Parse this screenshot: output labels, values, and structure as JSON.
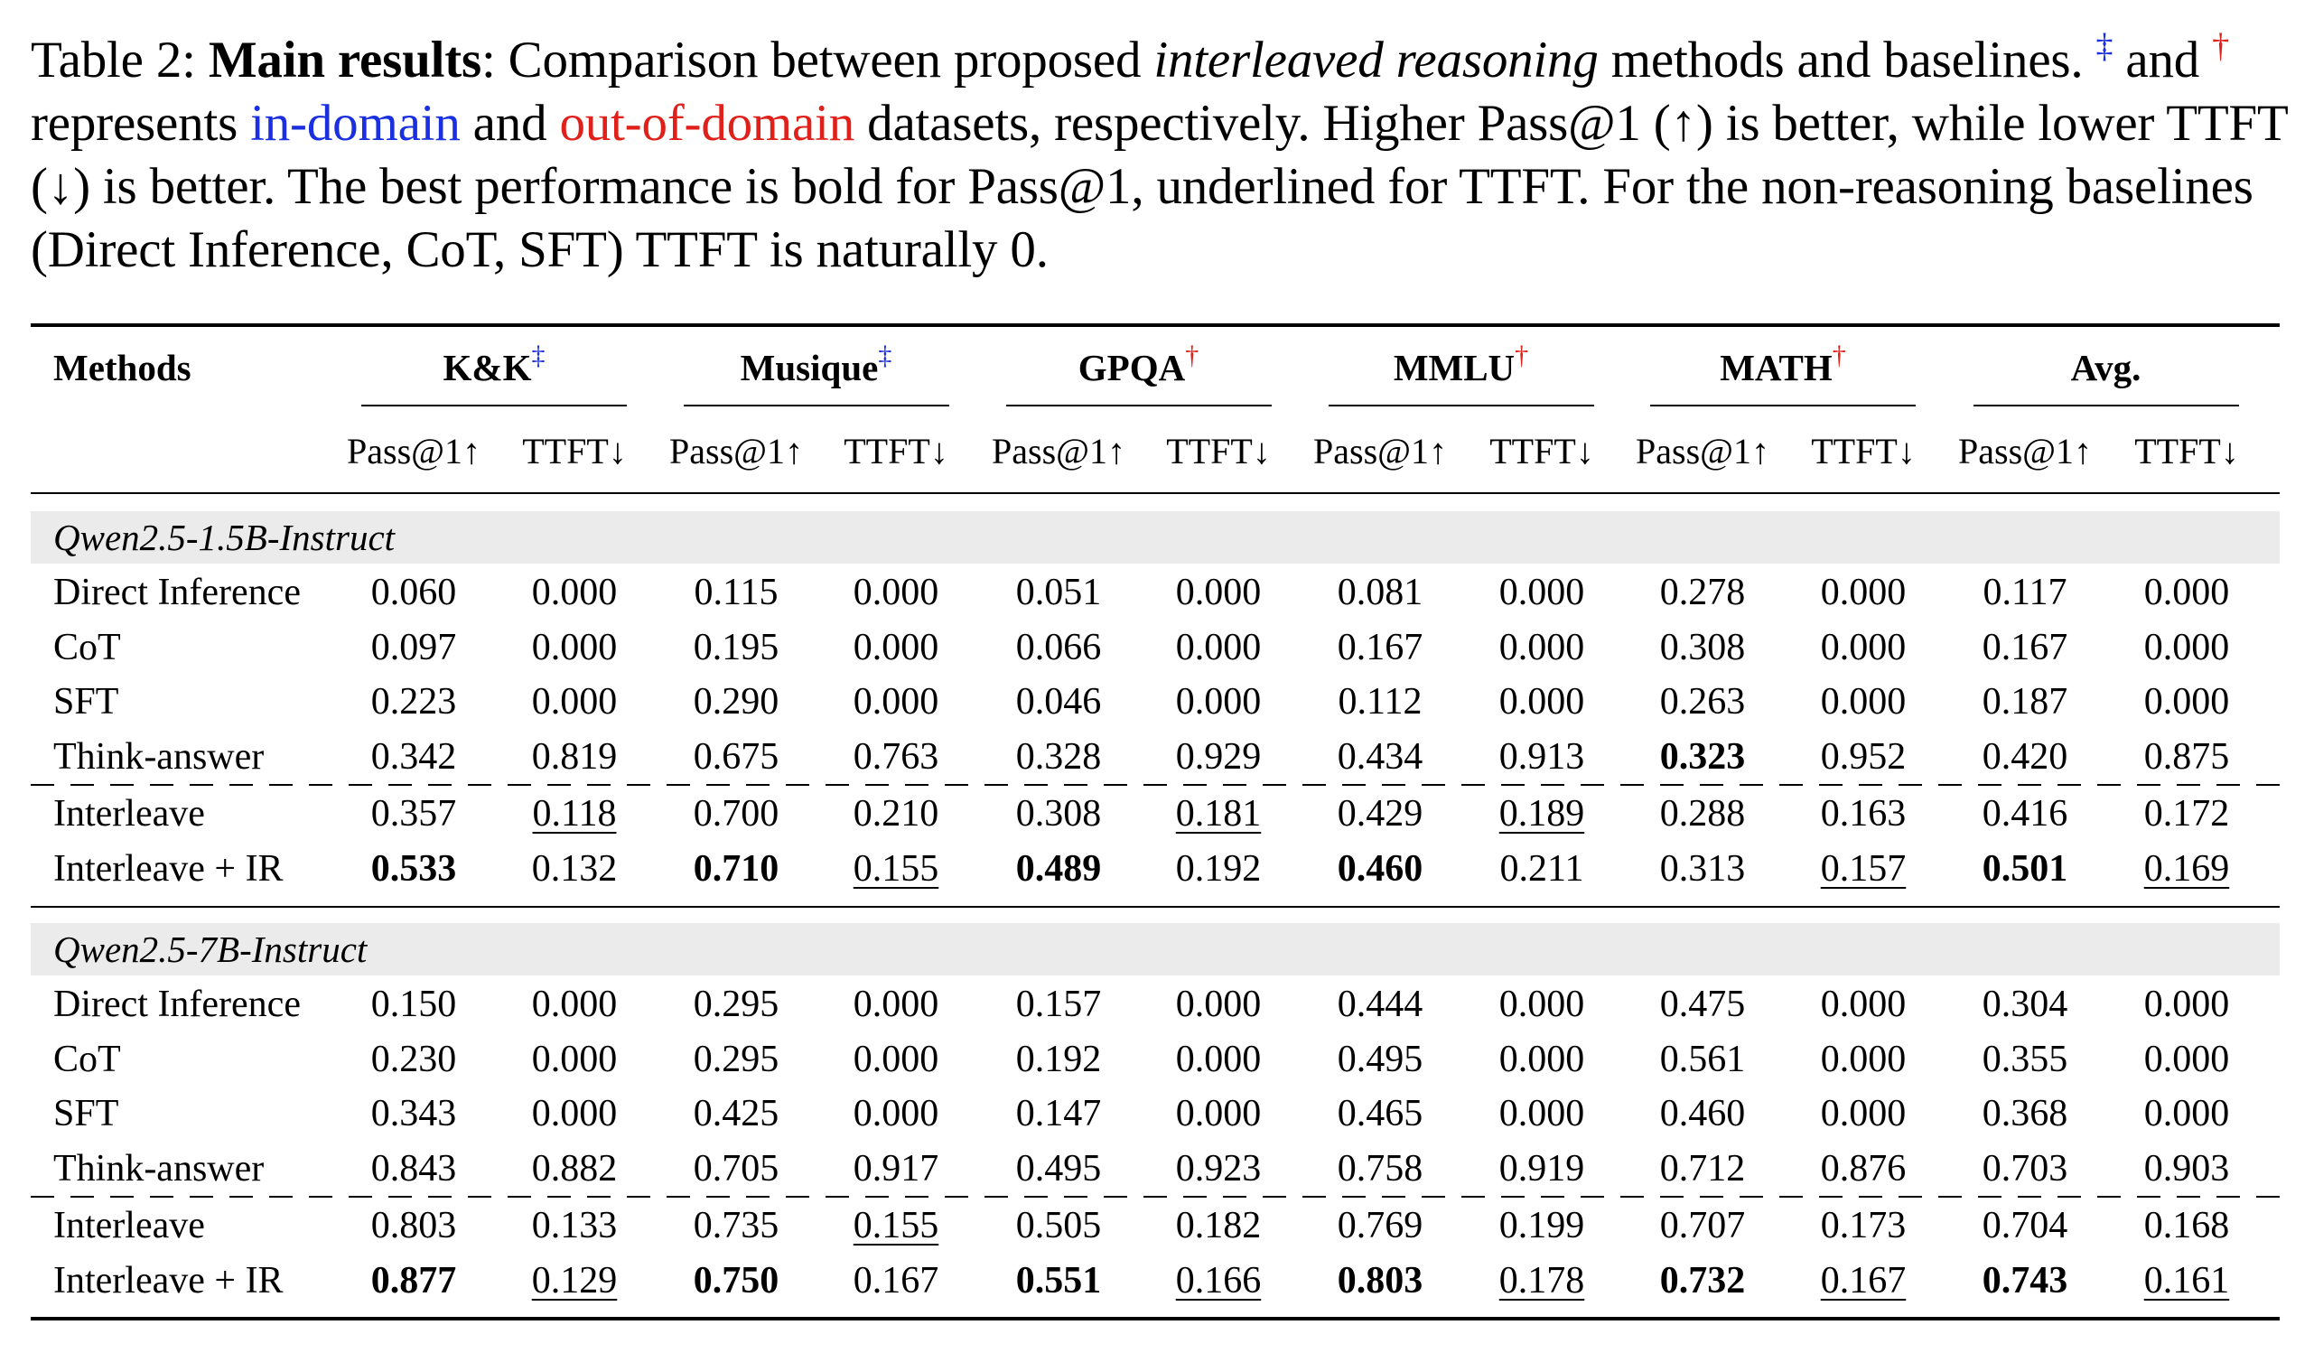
{
  "caption": {
    "label": "Table 2:",
    "title_bold": "Main results",
    "part1": ": Comparison between proposed ",
    "italic": "interleaved reasoning",
    "part2": " methods and baselines.",
    "ddagger": "‡",
    "and": " and ",
    "dagger": "†",
    "represents": " represents ",
    "in_domain": "in-domain",
    "and2": " and ",
    "out_domain": "out-of-domain",
    "part3": " datasets, respectively. Higher Pass@1 (↑) is better, while lower TTFT (↓) is better. The best performance is bold for Pass@1, underlined for TTFT. For the non-reasoning baselines (Direct Inference, CoT, SFT) TTFT is naturally 0."
  },
  "table": {
    "methods_header": "Methods",
    "datasets": [
      {
        "name": "K&K",
        "mark": "‡",
        "mark_color": "#1a2fe0"
      },
      {
        "name": "Musique",
        "mark": "‡",
        "mark_color": "#1a2fe0"
      },
      {
        "name": "GPQA",
        "mark": "†",
        "mark_color": "#e0201a"
      },
      {
        "name": "MMLU",
        "mark": "†",
        "mark_color": "#e0201a"
      },
      {
        "name": "MATH",
        "mark": "†",
        "mark_color": "#e0201a"
      },
      {
        "name": "Avg.",
        "mark": "",
        "mark_color": "#000000"
      }
    ],
    "subheaders": [
      "Pass@1↑",
      "TTFT↓"
    ],
    "groups": [
      {
        "model": "Qwen2.5-1.5B-Instruct",
        "rows": [
          {
            "method": "Direct Inference",
            "values": [
              "0.060",
              "0.000",
              "0.115",
              "0.000",
              "0.051",
              "0.000",
              "0.081",
              "0.000",
              "0.278",
              "0.000",
              "0.117",
              "0.000"
            ],
            "bold": [],
            "underline": []
          },
          {
            "method": "CoT",
            "values": [
              "0.097",
              "0.000",
              "0.195",
              "0.000",
              "0.066",
              "0.000",
              "0.167",
              "0.000",
              "0.308",
              "0.000",
              "0.167",
              "0.000"
            ],
            "bold": [],
            "underline": []
          },
          {
            "method": "SFT",
            "values": [
              "0.223",
              "0.000",
              "0.290",
              "0.000",
              "0.046",
              "0.000",
              "0.112",
              "0.000",
              "0.263",
              "0.000",
              "0.187",
              "0.000"
            ],
            "bold": [],
            "underline": []
          },
          {
            "method": "Think-answer",
            "values": [
              "0.342",
              "0.819",
              "0.675",
              "0.763",
              "0.328",
              "0.929",
              "0.434",
              "0.913",
              "0.323",
              "0.952",
              "0.420",
              "0.875"
            ],
            "bold": [
              8
            ],
            "underline": []
          },
          {
            "method": "Interleave",
            "values": [
              "0.357",
              "0.118",
              "0.700",
              "0.210",
              "0.308",
              "0.181",
              "0.429",
              "0.189",
              "0.288",
              "0.163",
              "0.416",
              "0.172"
            ],
            "bold": [],
            "underline": [
              1,
              5,
              7
            ]
          },
          {
            "method": "Interleave + IR",
            "values": [
              "0.533",
              "0.132",
              "0.710",
              "0.155",
              "0.489",
              "0.192",
              "0.460",
              "0.211",
              "0.313",
              "0.157",
              "0.501",
              "0.169"
            ],
            "bold": [
              0,
              2,
              4,
              6,
              10
            ],
            "underline": [
              3,
              9,
              11
            ]
          }
        ]
      },
      {
        "model": "Qwen2.5-7B-Instruct",
        "rows": [
          {
            "method": "Direct Inference",
            "values": [
              "0.150",
              "0.000",
              "0.295",
              "0.000",
              "0.157",
              "0.000",
              "0.444",
              "0.000",
              "0.475",
              "0.000",
              "0.304",
              "0.000"
            ],
            "bold": [],
            "underline": []
          },
          {
            "method": "CoT",
            "values": [
              "0.230",
              "0.000",
              "0.295",
              "0.000",
              "0.192",
              "0.000",
              "0.495",
              "0.000",
              "0.561",
              "0.000",
              "0.355",
              "0.000"
            ],
            "bold": [],
            "underline": []
          },
          {
            "method": "SFT",
            "values": [
              "0.343",
              "0.000",
              "0.425",
              "0.000",
              "0.147",
              "0.000",
              "0.465",
              "0.000",
              "0.460",
              "0.000",
              "0.368",
              "0.000"
            ],
            "bold": [],
            "underline": []
          },
          {
            "method": "Think-answer",
            "values": [
              "0.843",
              "0.882",
              "0.705",
              "0.917",
              "0.495",
              "0.923",
              "0.758",
              "0.919",
              "0.712",
              "0.876",
              "0.703",
              "0.903"
            ],
            "bold": [],
            "underline": []
          },
          {
            "method": "Interleave",
            "values": [
              "0.803",
              "0.133",
              "0.735",
              "0.155",
              "0.505",
              "0.182",
              "0.769",
              "0.199",
              "0.707",
              "0.173",
              "0.704",
              "0.168"
            ],
            "bold": [],
            "underline": [
              3
            ]
          },
          {
            "method": "Interleave + IR",
            "values": [
              "0.877",
              "0.129",
              "0.750",
              "0.167",
              "0.551",
              "0.166",
              "0.803",
              "0.178",
              "0.732",
              "0.167",
              "0.743",
              "0.161"
            ],
            "bold": [
              0,
              2,
              4,
              6,
              8,
              10
            ],
            "underline": [
              1,
              5,
              7,
              9,
              11
            ]
          }
        ]
      }
    ]
  }
}
